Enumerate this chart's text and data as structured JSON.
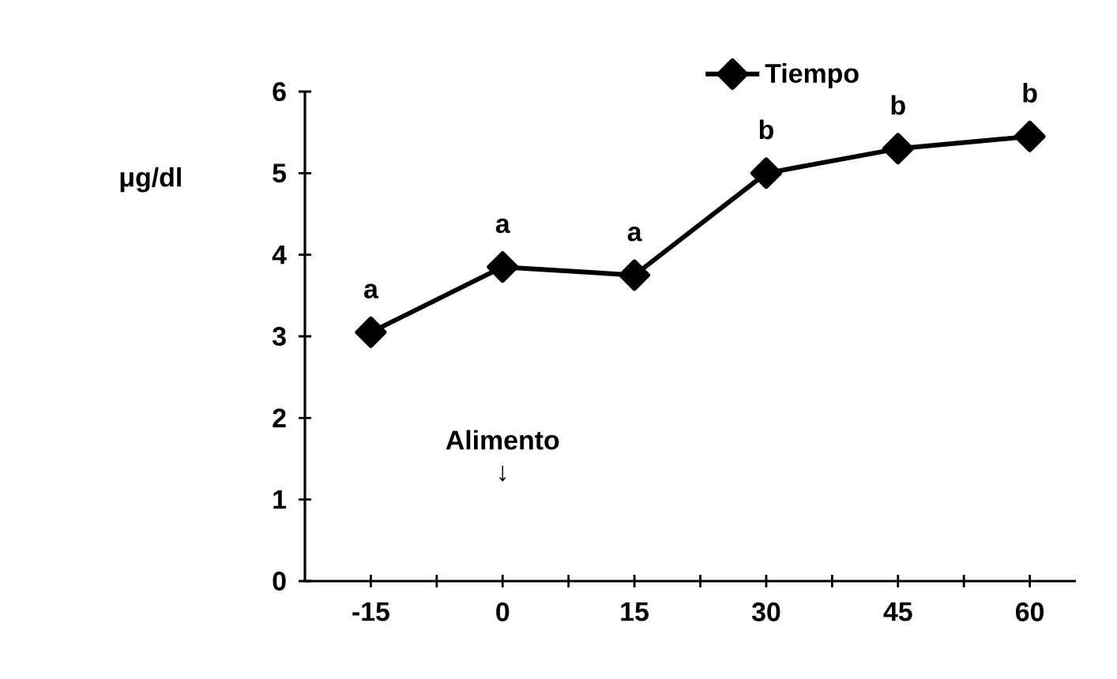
{
  "chart_data": {
    "type": "line",
    "ylabel": "μg/dl",
    "categories": [
      "-15",
      "0",
      "15",
      "30",
      "45",
      "60"
    ],
    "series": [
      {
        "name": "Tiempo",
        "color": "#000000",
        "values": [
          3.05,
          3.85,
          3.75,
          5.0,
          5.3,
          5.45
        ]
      }
    ],
    "ylim": [
      0,
      6
    ],
    "yticks": [
      0,
      1,
      2,
      3,
      4,
      5,
      6
    ],
    "marker": "diamond",
    "line_style": "solid",
    "legend": "top",
    "grid": false,
    "annotations": [
      {
        "text": "a",
        "x": "-15",
        "y": 3.05
      },
      {
        "text": "a",
        "x": "0",
        "y": 3.85
      },
      {
        "text": "a",
        "x": "15",
        "y": 3.75
      },
      {
        "text": "b",
        "x": "30",
        "y": 5.0
      },
      {
        "text": "b",
        "x": "45",
        "y": 5.3
      },
      {
        "text": "b",
        "x": "60",
        "y": 5.45
      },
      "Alimento ↓"
    ]
  }
}
